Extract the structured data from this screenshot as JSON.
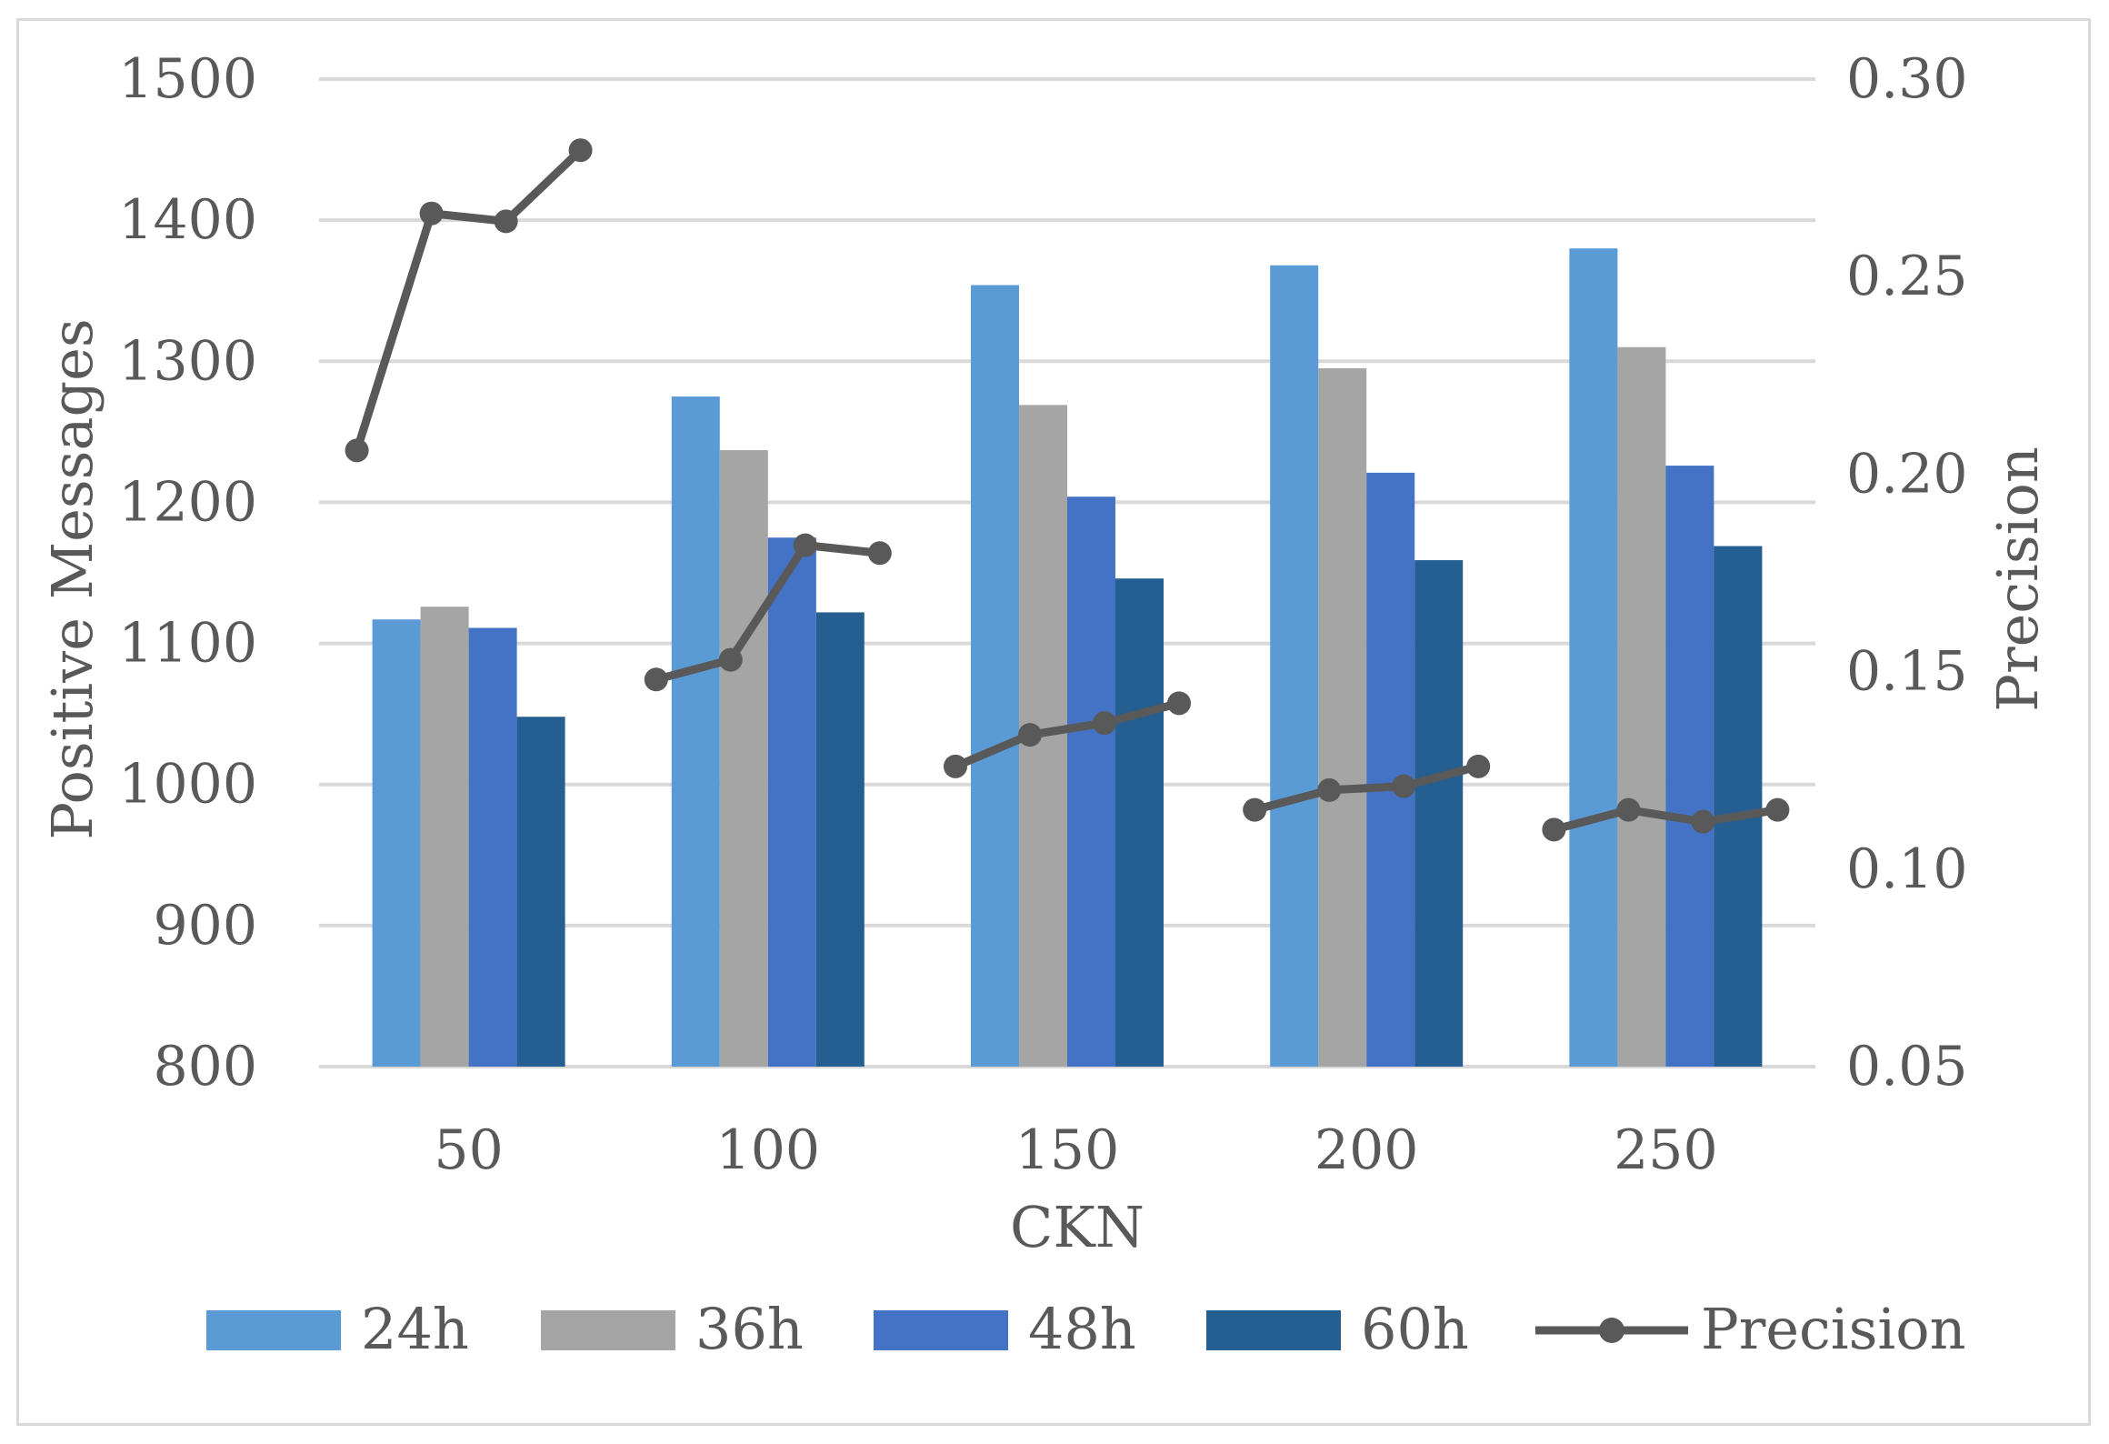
{
  "chart_data": {
    "type": "bar",
    "title": "",
    "xlabel": "CKN",
    "ylabel": "Positive Messages",
    "y2label": "Precision",
    "categories": [
      "50",
      "100",
      "150",
      "200",
      "250"
    ],
    "ylim": [
      800,
      1500
    ],
    "yticks": [
      "800",
      "900",
      "1000",
      "1100",
      "1200",
      "1300",
      "1400",
      "1500"
    ],
    "y2lim": [
      0.05,
      0.3
    ],
    "y2ticks": [
      "0.05",
      "0.10",
      "0.15",
      "0.20",
      "0.25",
      "0.30"
    ],
    "grid": true,
    "legend_position": "bottom",
    "series": [
      {
        "name": "24h",
        "color": "#5b9bd5",
        "values": [
          1117,
          1275,
          1354,
          1368,
          1380
        ]
      },
      {
        "name": "36h",
        "color": "#a5a5a5",
        "values": [
          1126,
          1237,
          1269,
          1295,
          1310
        ]
      },
      {
        "name": "48h",
        "color": "#4472c4",
        "values": [
          1111,
          1175,
          1204,
          1221,
          1226
        ]
      },
      {
        "name": "60h",
        "color": "#255e91",
        "values": [
          1048,
          1122,
          1146,
          1159,
          1169
        ]
      }
    ],
    "line_series": {
      "name": "Precision",
      "color": "#595959",
      "axis": "right",
      "groups": [
        [
          0.206,
          0.266,
          0.264,
          0.282
        ],
        [
          0.148,
          0.153,
          0.182,
          0.18
        ],
        [
          0.126,
          0.134,
          0.137,
          0.142
        ],
        [
          0.115,
          0.12,
          0.121,
          0.126
        ],
        [
          0.11,
          0.115,
          0.112,
          0.115
        ]
      ]
    }
  }
}
